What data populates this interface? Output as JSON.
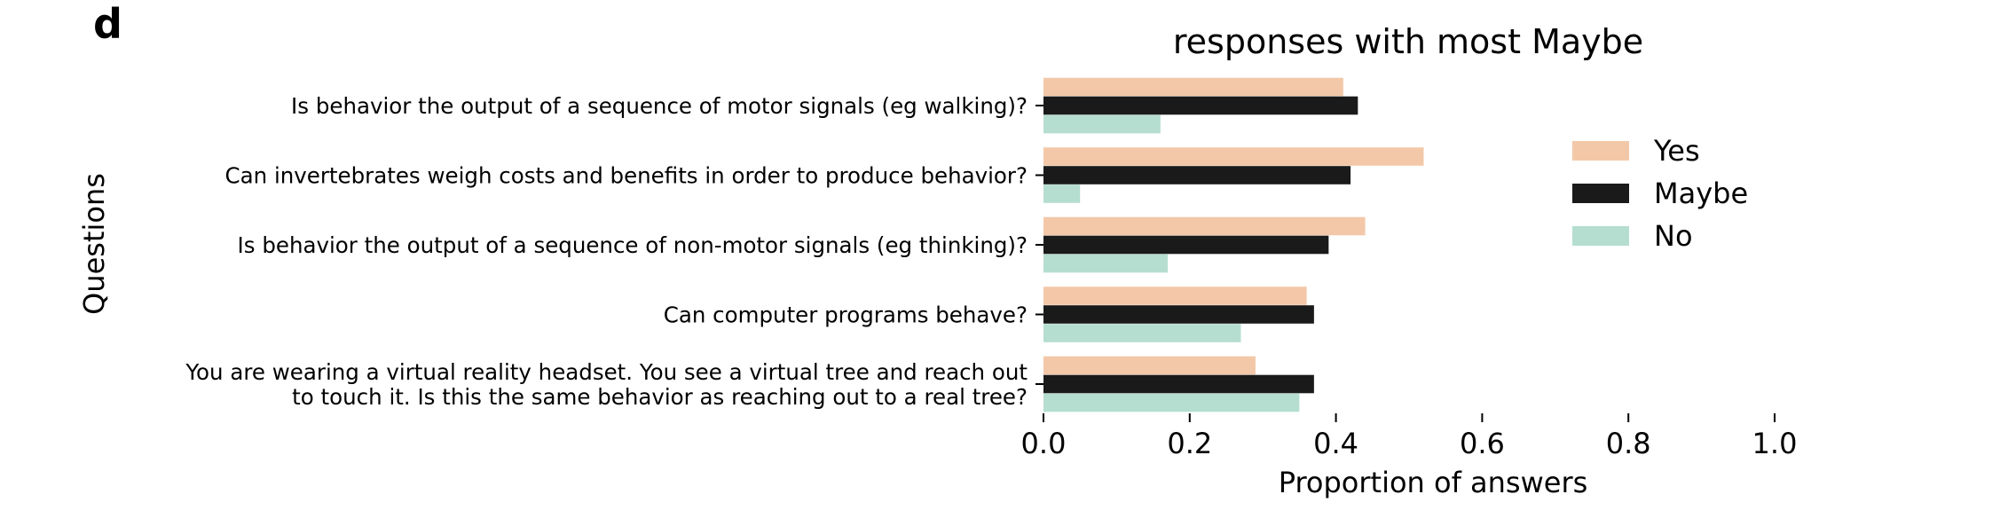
{
  "panel_label": "d",
  "chart_data": {
    "type": "bar",
    "orientation": "horizontal",
    "title": "responses with most Maybe",
    "xlabel": "Proportion of answers",
    "ylabel": "Questions",
    "xlim": [
      0.0,
      1.0
    ],
    "xticks": [
      "0.0",
      "0.2",
      "0.4",
      "0.6",
      "0.8",
      "1.0"
    ],
    "grid": false,
    "legend_position": "right",
    "categories": [
      [
        "Is behavior the output of a sequence of motor signals (eg walking)?"
      ],
      [
        "Can invertebrates weigh costs and benefits in order to produce behavior?"
      ],
      [
        "Is behavior the output of a sequence of non-motor signals (eg thinking)?"
      ],
      [
        "Can computer programs behave?"
      ],
      [
        "You are wearing a virtual reality headset. You see a virtual tree and reach out",
        "to touch it. Is this the same behavior as reaching out to a real tree?"
      ]
    ],
    "series": [
      {
        "name": "Yes",
        "color": "#f3c8a8",
        "values": [
          0.41,
          0.52,
          0.44,
          0.36,
          0.29
        ]
      },
      {
        "name": "Maybe",
        "color": "#1a1a1a",
        "values": [
          0.43,
          0.42,
          0.39,
          0.37,
          0.37
        ]
      },
      {
        "name": "No",
        "color": "#b5ded0",
        "values": [
          0.16,
          0.05,
          0.17,
          0.27,
          0.35
        ]
      }
    ]
  }
}
